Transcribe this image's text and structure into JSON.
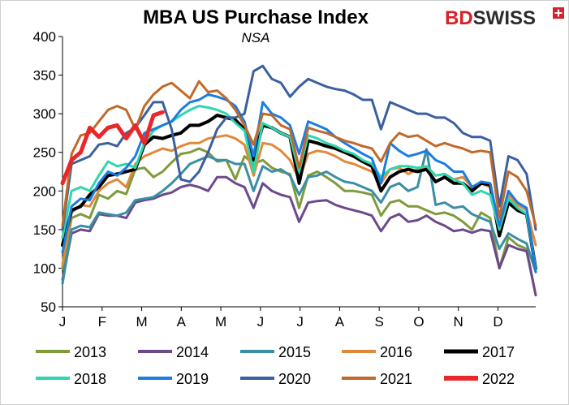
{
  "brand": {
    "logo_red": "BD",
    "logo_dark": "SWISS",
    "red": "#d92128",
    "dark": "#2b2b2b"
  },
  "chart_data": {
    "type": "line",
    "title": "MBA US Purchase Index",
    "subtitle": "NSA",
    "ylim": [
      50,
      400
    ],
    "yticks": [
      50,
      100,
      150,
      200,
      250,
      300,
      350,
      400
    ],
    "xlim": [
      0,
      52
    ],
    "month_ticks": [
      {
        "label": "J",
        "x": 0
      },
      {
        "label": "F",
        "x": 4.35
      },
      {
        "label": "M",
        "x": 8.7
      },
      {
        "label": "A",
        "x": 13.05
      },
      {
        "label": "M",
        "x": 17.4
      },
      {
        "label": "J",
        "x": 21.75
      },
      {
        "label": "J",
        "x": 26.1
      },
      {
        "label": "A",
        "x": 30.45
      },
      {
        "label": "S",
        "x": 34.8
      },
      {
        "label": "O",
        "x": 39.15
      },
      {
        "label": "N",
        "x": 43.5
      },
      {
        "label": "D",
        "x": 47.85
      }
    ],
    "legend_position": "bottom",
    "series": [
      {
        "name": "2013",
        "color": "#7f9b3c",
        "width": 3,
        "values": [
          100,
          165,
          170,
          165,
          195,
          190,
          200,
          196,
          228,
          230,
          218,
          225,
          237,
          248,
          250,
          255,
          250,
          238,
          240,
          215,
          245,
          235,
          240,
          230,
          225,
          222,
          178,
          220,
          225,
          218,
          210,
          200,
          200,
          198,
          195,
          168,
          185,
          188,
          180,
          180,
          175,
          170,
          172,
          168,
          160,
          150,
          172,
          165,
          100,
          140,
          130,
          125,
          65
        ]
      },
      {
        "name": "2014",
        "color": "#6b4a8c",
        "width": 3,
        "values": [
          85,
          145,
          150,
          148,
          170,
          168,
          168,
          165,
          185,
          188,
          190,
          195,
          198,
          205,
          208,
          205,
          200,
          218,
          218,
          210,
          205,
          178,
          210,
          200,
          195,
          192,
          160,
          185,
          187,
          188,
          182,
          178,
          175,
          172,
          168,
          148,
          165,
          170,
          160,
          162,
          168,
          160,
          155,
          148,
          150,
          146,
          150,
          148,
          100,
          130,
          125,
          122,
          65
        ]
      },
      {
        "name": "2015",
        "color": "#3a8fa6",
        "width": 3,
        "values": [
          80,
          150,
          155,
          153,
          172,
          170,
          168,
          172,
          188,
          190,
          192,
          200,
          210,
          222,
          235,
          240,
          245,
          240,
          240,
          235,
          235,
          200,
          232,
          225,
          228,
          220,
          195,
          218,
          220,
          225,
          218,
          212,
          210,
          205,
          200,
          185,
          205,
          210,
          200,
          205,
          254,
          182,
          185,
          178,
          180,
          170,
          165,
          160,
          125,
          145,
          138,
          132,
          95
        ]
      },
      {
        "name": "2016",
        "color": "#e0893a",
        "width": 3,
        "values": [
          105,
          172,
          182,
          180,
          200,
          210,
          215,
          205,
          235,
          245,
          250,
          255,
          252,
          258,
          262,
          262,
          268,
          270,
          272,
          268,
          260,
          220,
          262,
          260,
          252,
          240,
          215,
          248,
          252,
          250,
          245,
          238,
          235,
          230,
          225,
          210,
          228,
          230,
          222,
          228,
          232,
          220,
          222,
          215,
          218,
          205,
          210,
          205,
          148,
          195,
          182,
          175,
          130
        ]
      },
      {
        "name": "2017",
        "color": "#000000",
        "width": 4,
        "values": [
          130,
          175,
          180,
          195,
          205,
          220,
          222,
          225,
          228,
          260,
          270,
          268,
          272,
          275,
          285,
          285,
          290,
          298,
          295,
          292,
          280,
          240,
          285,
          282,
          275,
          270,
          210,
          265,
          262,
          258,
          255,
          250,
          245,
          238,
          232,
          200,
          218,
          225,
          228,
          225,
          228,
          212,
          218,
          210,
          210,
          200,
          210,
          208,
          142,
          185,
          175,
          170,
          100
        ]
      },
      {
        "name": "2018",
        "color": "#2ed6ad",
        "width": 3,
        "values": [
          140,
          200,
          205,
          200,
          220,
          238,
          232,
          235,
          230,
          262,
          278,
          285,
          290,
          298,
          305,
          310,
          308,
          305,
          300,
          288,
          278,
          225,
          288,
          282,
          275,
          270,
          225,
          272,
          268,
          262,
          258,
          252,
          248,
          240,
          235,
          218,
          228,
          232,
          232,
          230,
          232,
          220,
          222,
          215,
          210,
          195,
          200,
          195,
          150,
          190,
          178,
          170,
          100
        ]
      },
      {
        "name": "2019",
        "color": "#1c7ce0",
        "width": 3,
        "values": [
          120,
          180,
          190,
          188,
          210,
          225,
          220,
          230,
          245,
          275,
          280,
          285,
          290,
          305,
          315,
          318,
          325,
          322,
          318,
          310,
          290,
          245,
          315,
          300,
          295,
          285,
          248,
          290,
          285,
          280,
          270,
          262,
          255,
          248,
          242,
          210,
          262,
          252,
          245,
          248,
          252,
          240,
          235,
          225,
          225,
          205,
          212,
          210,
          155,
          200,
          185,
          178,
          95
        ]
      },
      {
        "name": "2020",
        "color": "#3b5fa0",
        "width": 3,
        "values": [
          150,
          235,
          240,
          245,
          260,
          262,
          258,
          275,
          282,
          298,
          315,
          315,
          280,
          215,
          212,
          225,
          250,
          280,
          295,
          295,
          300,
          355,
          362,
          345,
          340,
          322,
          335,
          345,
          340,
          335,
          332,
          330,
          325,
          318,
          318,
          280,
          315,
          310,
          305,
          300,
          300,
          295,
          295,
          288,
          275,
          270,
          270,
          265,
          180,
          245,
          240,
          222,
          150
        ]
      },
      {
        "name": "2021",
        "color": "#c06a2a",
        "width": 3,
        "values": [
          155,
          248,
          272,
          275,
          290,
          305,
          310,
          305,
          280,
          310,
          325,
          335,
          340,
          330,
          320,
          342,
          328,
          330,
          320,
          305,
          285,
          260,
          300,
          298,
          285,
          280,
          230,
          282,
          278,
          275,
          270,
          265,
          262,
          258,
          255,
          238,
          262,
          275,
          270,
          272,
          265,
          258,
          262,
          258,
          255,
          250,
          252,
          250,
          165,
          225,
          218,
          200,
          155
        ]
      },
      {
        "name": "2022",
        "color": "#e8282b",
        "width": 5,
        "values": [
          210,
          240,
          250,
          282,
          270,
          282,
          285,
          268,
          285,
          262,
          298,
          302
        ]
      }
    ]
  }
}
